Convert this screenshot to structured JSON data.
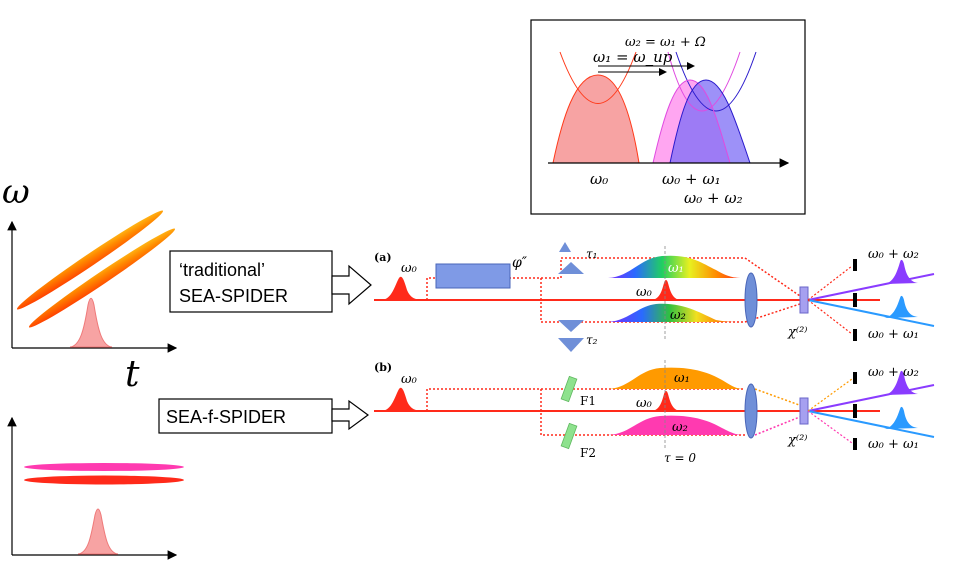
{
  "left_plot": {
    "y_axis_label": "ω",
    "x_axis_label": "t"
  },
  "callouts": {
    "traditional_line1": "‘traditional’",
    "traditional_line2": "SEA-SPIDER",
    "f_spider": "SEA-f-SPIDER"
  },
  "inset": {
    "top_label": "ω₂ = ω₁ + Ω",
    "arrow_label": "ω₁ = ω_up",
    "label_w0": "ω₀",
    "label_w0_w1": "ω₀ + ω₁",
    "label_w0_w2": "ω₀ + ω₂"
  },
  "setup_a": {
    "panel_label": "(a)",
    "input_label": "ω₀",
    "dispersion_label": "φ″",
    "tau1": "τ₁",
    "tau2": "τ₂",
    "pulse1_label": "ω₁",
    "pulse2_label": "ω₂",
    "center_label": "ω₀",
    "crystal_label": "χ⁽²⁾",
    "out_top": "ω₀ + ω₂",
    "out_bottom": "ω₀ + ω₁"
  },
  "setup_b": {
    "panel_label": "(b)",
    "input_label": "ω₀",
    "filter1": "F1",
    "filter2": "F2",
    "pulse1_label": "ω₁",
    "pulse2_label": "ω₂",
    "center_label": "ω₀",
    "tau_label": "τ = 0",
    "crystal_label": "χ⁽²⁾",
    "out_top": "ω₀ + ω₂",
    "out_bottom": "ω₀ + ω₁"
  },
  "colors": {
    "beam_red": "#ff2a1a",
    "pink": "#ff3ab0",
    "orange": "#ff9a00",
    "violet": "#8a3cff",
    "blue": "#2a9aff",
    "optic_blue": "#6f8fd8"
  }
}
